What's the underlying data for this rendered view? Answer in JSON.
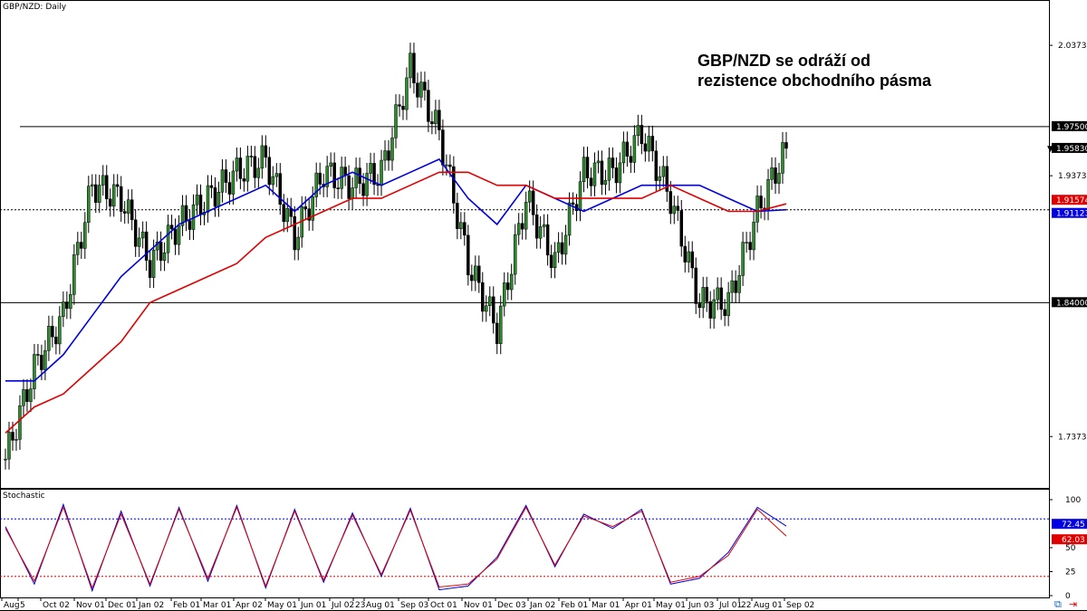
{
  "chart_title": "GBP/NZD: Daily",
  "annotation": {
    "line1": "GBP/NZD se odráží od",
    "line2": "rezistence obchodního pásma"
  },
  "price_axis": {
    "min": 1.7,
    "max": 2.07,
    "ticks": [
      "2.03731",
      "1.93731",
      "1.73731"
    ],
    "tick_values": [
      2.03731,
      1.93731,
      1.73731
    ],
    "tags": [
      {
        "text": "1.97500",
        "value": 1.975,
        "bg": "#000000",
        "fg": "#ffffff"
      },
      {
        "text": "1.95830",
        "value": 1.9583,
        "bg": "#000000",
        "fg": "#ffffff",
        "marker": "▼"
      },
      {
        "text": "1.91574",
        "value": 1.91574,
        "bg": "#e00000",
        "fg": "#ffffff"
      },
      {
        "text": "1.91123",
        "value": 1.91123,
        "bg": "#0000e0",
        "fg": "#ffffff"
      },
      {
        "text": "1.84000",
        "value": 1.84,
        "bg": "#000000",
        "fg": "#ffffff"
      }
    ]
  },
  "stoch_panel": {
    "title": "Stochastic",
    "ticks": [
      "100",
      "50",
      "25",
      "0"
    ],
    "tick_values": [
      100,
      50,
      25,
      0
    ],
    "levels": [
      80,
      20
    ],
    "tags": [
      {
        "text": "72.45",
        "value": 72.45,
        "bg": "#0000e0",
        "fg": "#ffffff"
      },
      {
        "text": "62.03",
        "value": 62.03,
        "bg": "#e00000",
        "fg": "#ffffff"
      }
    ]
  },
  "x_labels": [
    "Aug",
    "5",
    "Oct 02",
    "Nov 01",
    "Dec 01",
    "Jan 02",
    "Feb 01",
    "Mar 01",
    "Apr 02",
    "May 01",
    "Jun 01",
    "Jul 02",
    "23",
    "Aug 01",
    "Sep 03",
    "Oct 01",
    "Nov 01",
    "Dec 03",
    "Jan 02",
    "Feb 01",
    "Mar 01",
    "Apr 01",
    "May 01",
    "Jun 03",
    "Jul 01",
    "22",
    "Aug 01",
    "Sep 02"
  ],
  "chart_data": {
    "type": "line",
    "title": "GBP/NZD: Daily",
    "x": [
      "Aug",
      "5",
      "Oct 02",
      "Nov 01",
      "Dec 01",
      "Jan 02",
      "Feb 01",
      "Mar 01",
      "Apr 02",
      "May 01",
      "Jun 01",
      "Jul 02",
      "23",
      "Aug 01",
      "Sep 03",
      "Oct 01",
      "Nov 01",
      "Dec 03",
      "Jan 02",
      "Feb 01",
      "Mar 01",
      "Apr 01",
      "May 01",
      "Jun 03",
      "Jul 01",
      "22",
      "Aug 01",
      "Sep 02"
    ],
    "series": [
      {
        "values": [
          1.72,
          1.79,
          1.83,
          1.93,
          1.92,
          1.87,
          1.9,
          1.92,
          1.94,
          1.95,
          1.89,
          1.94,
          1.93,
          1.94,
          2.02,
          1.97,
          1.87,
          1.82,
          1.92,
          1.87,
          1.94,
          1.94,
          1.97,
          1.92,
          1.84,
          1.84,
          1.91,
          1.9583
        ],
        "color": "#2e8b2e"
      },
      {
        "values": [
          1.78,
          1.78,
          1.8,
          1.83,
          1.86,
          1.88,
          1.9,
          1.91,
          1.92,
          1.93,
          1.91,
          1.93,
          1.94,
          1.93,
          1.94,
          1.95,
          1.92,
          1.9,
          1.93,
          1.92,
          1.91,
          1.92,
          1.93,
          1.93,
          1.93,
          1.92,
          1.91,
          1.91123
        ],
        "color": "#0000e0"
      },
      {
        "values": [
          1.74,
          1.76,
          1.77,
          1.79,
          1.81,
          1.84,
          1.85,
          1.86,
          1.87,
          1.89,
          1.9,
          1.91,
          1.92,
          1.92,
          1.93,
          1.94,
          1.94,
          1.93,
          1.93,
          1.92,
          1.92,
          1.92,
          1.92,
          1.93,
          1.92,
          1.91,
          1.91,
          1.91574
        ],
        "color": "#e00000"
      }
    ],
    "horizontal_levels": [
      1.975,
      1.91123,
      1.84
    ],
    "stochastic": {
      "main": [
        72,
        12,
        95,
        5,
        88,
        10,
        92,
        15,
        94,
        8,
        90,
        14,
        86,
        20,
        91,
        6,
        10,
        40,
        94,
        30,
        85,
        70,
        90,
        12,
        18,
        45,
        92,
        72.45
      ],
      "signal": [
        70,
        15,
        92,
        8,
        85,
        12,
        90,
        18,
        92,
        10,
        88,
        16,
        84,
        22,
        89,
        9,
        12,
        38,
        92,
        32,
        83,
        72,
        88,
        14,
        20,
        42,
        90,
        62.03
      ],
      "levels": [
        80,
        20
      ],
      "ylim": [
        0,
        100
      ]
    },
    "ylim": [
      1.7,
      2.07
    ],
    "grid": false
  }
}
